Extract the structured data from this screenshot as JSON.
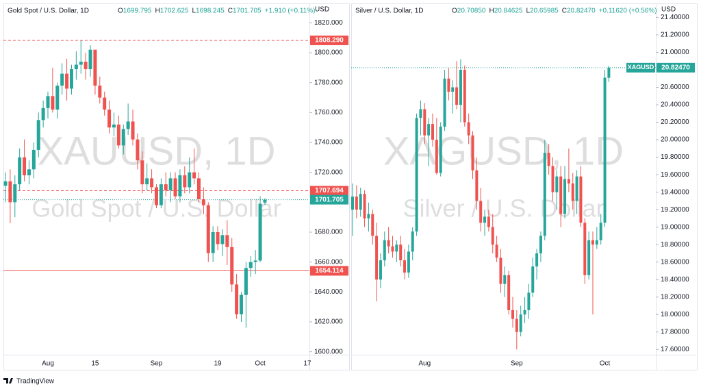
{
  "chart_data": [
    {
      "type": "candlestick",
      "title": "Gold Spot / U.S. Dollar, 1D",
      "ohlc_header": [
        {
          "key": "O",
          "value": "1699.795"
        },
        {
          "key": "H",
          "value": "1702.625"
        },
        {
          "key": "L",
          "value": "1698.245"
        },
        {
          "key": "C",
          "value": "1701.705"
        }
      ],
      "change": "+1.910 (+0.11%)",
      "watermark": "XAUUSD, 1D",
      "watermark_sub": "Gold Spot / U.S. Dollar",
      "y_label": "USD",
      "up_color": "#26a69a",
      "down_color": "#ef5350",
      "ylim": [
        1598,
        1833
      ],
      "yticks": [
        {
          "value": 1820,
          "label": "1820.000"
        },
        {
          "value": 1800,
          "label": "1800.000"
        },
        {
          "value": 1780,
          "label": "1780.000"
        },
        {
          "value": 1760,
          "label": "1760.000"
        },
        {
          "value": 1740,
          "label": "1740.000"
        },
        {
          "value": 1720,
          "label": "1720.000"
        },
        {
          "value": 1700,
          "label": "1700.000"
        },
        {
          "value": 1680,
          "label": "1680.000"
        },
        {
          "value": 1660,
          "label": "1660.000"
        },
        {
          "value": 1640,
          "label": "1640.000"
        },
        {
          "value": 1620,
          "label": "1620.000"
        },
        {
          "value": 1600,
          "label": "1600.000"
        }
      ],
      "price_lines": [
        {
          "value": 1808.29,
          "label": "1808.290",
          "color": "#ef5350",
          "style": "dashed"
        },
        {
          "value": 1707.694,
          "label": "1707.694",
          "color": "#ef5350",
          "style": "dashed"
        },
        {
          "value": 1701.705,
          "label": "1701.705",
          "color": "#26a69a",
          "style": "dotted"
        },
        {
          "value": 1654.114,
          "label": "1654.114",
          "color": "#ef5350",
          "style": "solid"
        }
      ],
      "categories": [
        null,
        null,
        null,
        null,
        null,
        null,
        null,
        null,
        null,
        "Aug",
        null,
        null,
        null,
        null,
        null,
        null,
        null,
        null,
        null,
        "15",
        null,
        null,
        null,
        null,
        null,
        null,
        null,
        null,
        null,
        null,
        null,
        null,
        "Sep",
        null,
        null,
        null,
        null,
        null,
        null,
        null,
        null,
        null,
        null,
        null,
        null,
        "19",
        null,
        null,
        null,
        null,
        null,
        null,
        null,
        null,
        "Oct",
        null,
        null,
        null,
        null,
        null,
        null,
        null,
        null,
        null,
        "17"
      ],
      "open": [
        1711,
        1714,
        1700,
        1712,
        1730,
        1718,
        1722,
        1735,
        1755,
        1763,
        1771,
        1762,
        1778,
        1786,
        1776,
        1789,
        1792,
        1794,
        1789,
        1802,
        1778,
        1770,
        1762,
        1750,
        1752,
        1738,
        1749,
        1754,
        1742,
        1728,
        1712,
        1716,
        1710,
        1698,
        1712,
        1708,
        1716,
        1704,
        1718,
        1710,
        1720,
        1716,
        1702,
        1698,
        1666,
        1680,
        1672,
        1678,
        1670,
        1645,
        1625,
        1638,
        1656,
        1660,
        1661,
        1699.795,
        null,
        null,
        null,
        null,
        null,
        null,
        null,
        null,
        null
      ],
      "high": [
        1720,
        1722,
        1718,
        1736,
        1742,
        1728,
        1740,
        1760,
        1768,
        1774,
        1790,
        1780,
        1793,
        1796,
        1792,
        1801,
        1808,
        1800,
        1805,
        1802,
        1784,
        1774,
        1768,
        1760,
        1758,
        1752,
        1766,
        1762,
        1746,
        1734,
        1726,
        1722,
        1712,
        1716,
        1720,
        1720,
        1720,
        1722,
        1724,
        1730,
        1736,
        1720,
        1710,
        1700,
        1684,
        1684,
        1682,
        1688,
        1676,
        1652,
        1640,
        1660,
        1664,
        1668,
        1704,
        1702.625,
        null,
        null,
        null,
        null,
        null,
        null,
        null,
        null,
        null
      ],
      "low": [
        1700,
        1686,
        1690,
        1708,
        1714,
        1712,
        1716,
        1730,
        1750,
        1756,
        1760,
        1756,
        1772,
        1768,
        1772,
        1782,
        1786,
        1782,
        1784,
        1772,
        1766,
        1758,
        1746,
        1744,
        1736,
        1732,
        1745,
        1738,
        1722,
        1706,
        1708,
        1706,
        1696,
        1696,
        1704,
        1700,
        1702,
        1700,
        1706,
        1706,
        1712,
        1700,
        1692,
        1660,
        1660,
        1668,
        1664,
        1658,
        1640,
        1622,
        1620,
        1616,
        1650,
        1652,
        1660,
        1698.245,
        null,
        null,
        null,
        null,
        null,
        null,
        null,
        null,
        null
      ],
      "close": [
        1714,
        1700,
        1712,
        1730,
        1718,
        1722,
        1735,
        1755,
        1763,
        1771,
        1762,
        1778,
        1786,
        1776,
        1789,
        1792,
        1794,
        1789,
        1802,
        1778,
        1770,
        1762,
        1750,
        1752,
        1738,
        1749,
        1754,
        1742,
        1728,
        1712,
        1716,
        1710,
        1698,
        1712,
        1708,
        1716,
        1704,
        1718,
        1710,
        1720,
        1716,
        1702,
        1698,
        1666,
        1680,
        1672,
        1678,
        1670,
        1645,
        1625,
        1638,
        1656,
        1660,
        1661,
        1699,
        1701.705,
        null,
        null,
        null,
        null,
        null,
        null,
        null,
        null,
        null
      ]
    },
    {
      "type": "candlestick",
      "title": "Silver / U.S. Dollar, 1D",
      "ohlc_header": [
        {
          "key": "O",
          "value": "20.70850"
        },
        {
          "key": "H",
          "value": "20.84625"
        },
        {
          "key": "L",
          "value": "20.65985"
        },
        {
          "key": "C",
          "value": "20.82470"
        }
      ],
      "change": "+0.11620 (+0.56%)",
      "watermark": "XAGUSD, 1D",
      "watermark_sub": "Silver / U.S. Dollar",
      "y_label": "USD",
      "up_color": "#26a69a",
      "down_color": "#ef5350",
      "ylim": [
        17.54,
        21.56
      ],
      "yticks": [
        {
          "value": 21.4,
          "label": "21.40000"
        },
        {
          "value": 21.2,
          "label": "21.20000"
        },
        {
          "value": 21,
          "label": "21.00000"
        },
        {
          "value": 20.8,
          "label": "20.80000"
        },
        {
          "value": 20.6,
          "label": "20.60000"
        },
        {
          "value": 20.4,
          "label": "20.40000"
        },
        {
          "value": 20.2,
          "label": "20.20000"
        },
        {
          "value": 20,
          "label": "20.00000"
        },
        {
          "value": 19.8,
          "label": "19.80000"
        },
        {
          "value": 19.6,
          "label": "19.60000"
        },
        {
          "value": 19.4,
          "label": "19.40000"
        },
        {
          "value": 19.2,
          "label": "19.20000"
        },
        {
          "value": 19,
          "label": "19.00000"
        },
        {
          "value": 18.8,
          "label": "18.80000"
        },
        {
          "value": 18.6,
          "label": "18.60000"
        },
        {
          "value": 18.4,
          "label": "18.40000"
        },
        {
          "value": 18.2,
          "label": "18.20000"
        },
        {
          "value": 18,
          "label": "18.00000"
        },
        {
          "value": 17.8,
          "label": "17.80000"
        },
        {
          "value": 17.6,
          "label": "17.60000"
        }
      ],
      "price_lines": [
        {
          "value": 20.8247,
          "label": "20.82470",
          "color": "#26a69a",
          "style": "dotted",
          "tag": "XAGUSD"
        }
      ],
      "categories": [
        null,
        null,
        null,
        null,
        null,
        null,
        null,
        null,
        null,
        null,
        null,
        null,
        null,
        null,
        null,
        null,
        null,
        null,
        "Aug",
        null,
        null,
        null,
        null,
        null,
        null,
        null,
        null,
        null,
        null,
        null,
        null,
        null,
        null,
        null,
        null,
        null,
        null,
        null,
        null,
        null,
        null,
        "Sep",
        null,
        null,
        null,
        null,
        null,
        null,
        null,
        null,
        null,
        null,
        null,
        null,
        null,
        null,
        null,
        null,
        null,
        null,
        null,
        null,
        null,
        "Oct",
        null,
        null,
        null,
        null,
        null,
        null,
        null,
        null,
        null,
        null,
        null,
        null
      ],
      "open": [
        19.2,
        19.35,
        19.2,
        19.38,
        19.1,
        19.15,
        18.9,
        18.4,
        18.62,
        18.85,
        18.78,
        18.72,
        18.8,
        18.62,
        18.48,
        18.72,
        18.95,
        20.25,
        20.35,
        20.05,
        20.18,
        20.0,
        19.62,
        20.15,
        20.7,
        20.55,
        20.6,
        20.4,
        20.8,
        20.2,
        20.05,
        19.65,
        19.3,
        19.05,
        19.12,
        19.0,
        18.8,
        18.65,
        18.35,
        18.45,
        18.05,
        17.95,
        17.8,
        18.0,
        18.05,
        18.25,
        18.55,
        18.7,
        18.9,
        19.85,
        19.7,
        19.4,
        19.58,
        19.15,
        19.55,
        19.5,
        19.3,
        19.58,
        19.05,
        18.45,
        18.85,
        18.8,
        18.85,
        19.05,
        20.7085,
        null,
        null,
        null,
        null,
        null,
        null,
        null,
        null,
        null,
        null,
        null
      ],
      "high": [
        19.5,
        19.48,
        19.45,
        19.42,
        19.28,
        19.2,
        19.05,
        18.7,
        18.95,
        19.0,
        18.9,
        18.85,
        18.9,
        18.75,
        18.8,
        19.0,
        20.3,
        20.45,
        20.42,
        20.25,
        20.3,
        20.25,
        20.2,
        20.8,
        20.82,
        20.68,
        20.9,
        20.92,
        20.85,
        20.3,
        20.1,
        19.8,
        19.45,
        19.2,
        19.2,
        19.15,
        18.9,
        18.75,
        18.55,
        18.5,
        18.2,
        18.05,
        18.1,
        18.2,
        18.35,
        18.65,
        18.75,
        18.95,
        20.0,
        19.95,
        19.8,
        19.65,
        19.7,
        19.7,
        19.9,
        19.62,
        19.65,
        19.7,
        19.1,
        18.95,
        18.95,
        19.0,
        19.15,
        20.8,
        20.84625,
        null,
        null,
        null,
        null,
        null,
        null,
        null,
        null,
        null,
        null,
        null
      ],
      "low": [
        18.9,
        19.1,
        19.12,
        19.0,
        18.95,
        18.8,
        18.15,
        18.3,
        18.55,
        18.7,
        18.65,
        18.6,
        18.55,
        18.4,
        18.42,
        18.62,
        18.9,
        20.05,
        19.95,
        19.7,
        19.92,
        19.6,
        19.58,
        20.1,
        20.45,
        20.3,
        20.35,
        20.2,
        20.15,
        19.95,
        19.55,
        19.2,
        18.95,
        18.9,
        18.95,
        18.7,
        18.6,
        18.25,
        18.2,
        18.0,
        17.85,
        17.6,
        17.75,
        17.9,
        17.95,
        18.2,
        18.4,
        18.6,
        18.85,
        19.6,
        19.3,
        19.2,
        19.0,
        19.1,
        19.4,
        19.2,
        19.15,
        19.0,
        18.35,
        18.4,
        18.0,
        18.75,
        18.8,
        19.0,
        20.65985,
        null,
        null,
        null,
        null,
        null,
        null,
        null,
        null,
        null,
        null,
        null
      ],
      "close": [
        19.35,
        19.2,
        19.38,
        19.1,
        19.15,
        18.9,
        18.4,
        18.62,
        18.85,
        18.78,
        18.72,
        18.8,
        18.62,
        18.48,
        18.72,
        18.95,
        20.25,
        20.35,
        20.05,
        20.18,
        20.0,
        19.62,
        20.15,
        20.7,
        20.55,
        20.6,
        20.4,
        20.8,
        20.2,
        20.05,
        19.65,
        19.3,
        19.05,
        19.12,
        19.0,
        18.8,
        18.65,
        18.35,
        18.45,
        18.05,
        17.95,
        17.8,
        18.0,
        18.05,
        18.25,
        18.55,
        18.7,
        18.9,
        19.85,
        19.7,
        19.4,
        19.58,
        19.15,
        19.55,
        19.5,
        19.3,
        19.58,
        19.05,
        18.45,
        18.85,
        18.8,
        18.85,
        19.05,
        20.71,
        20.8247,
        null,
        null,
        null,
        null,
        null,
        null,
        null,
        null,
        null,
        null,
        null
      ]
    }
  ],
  "branding": "TradingView"
}
